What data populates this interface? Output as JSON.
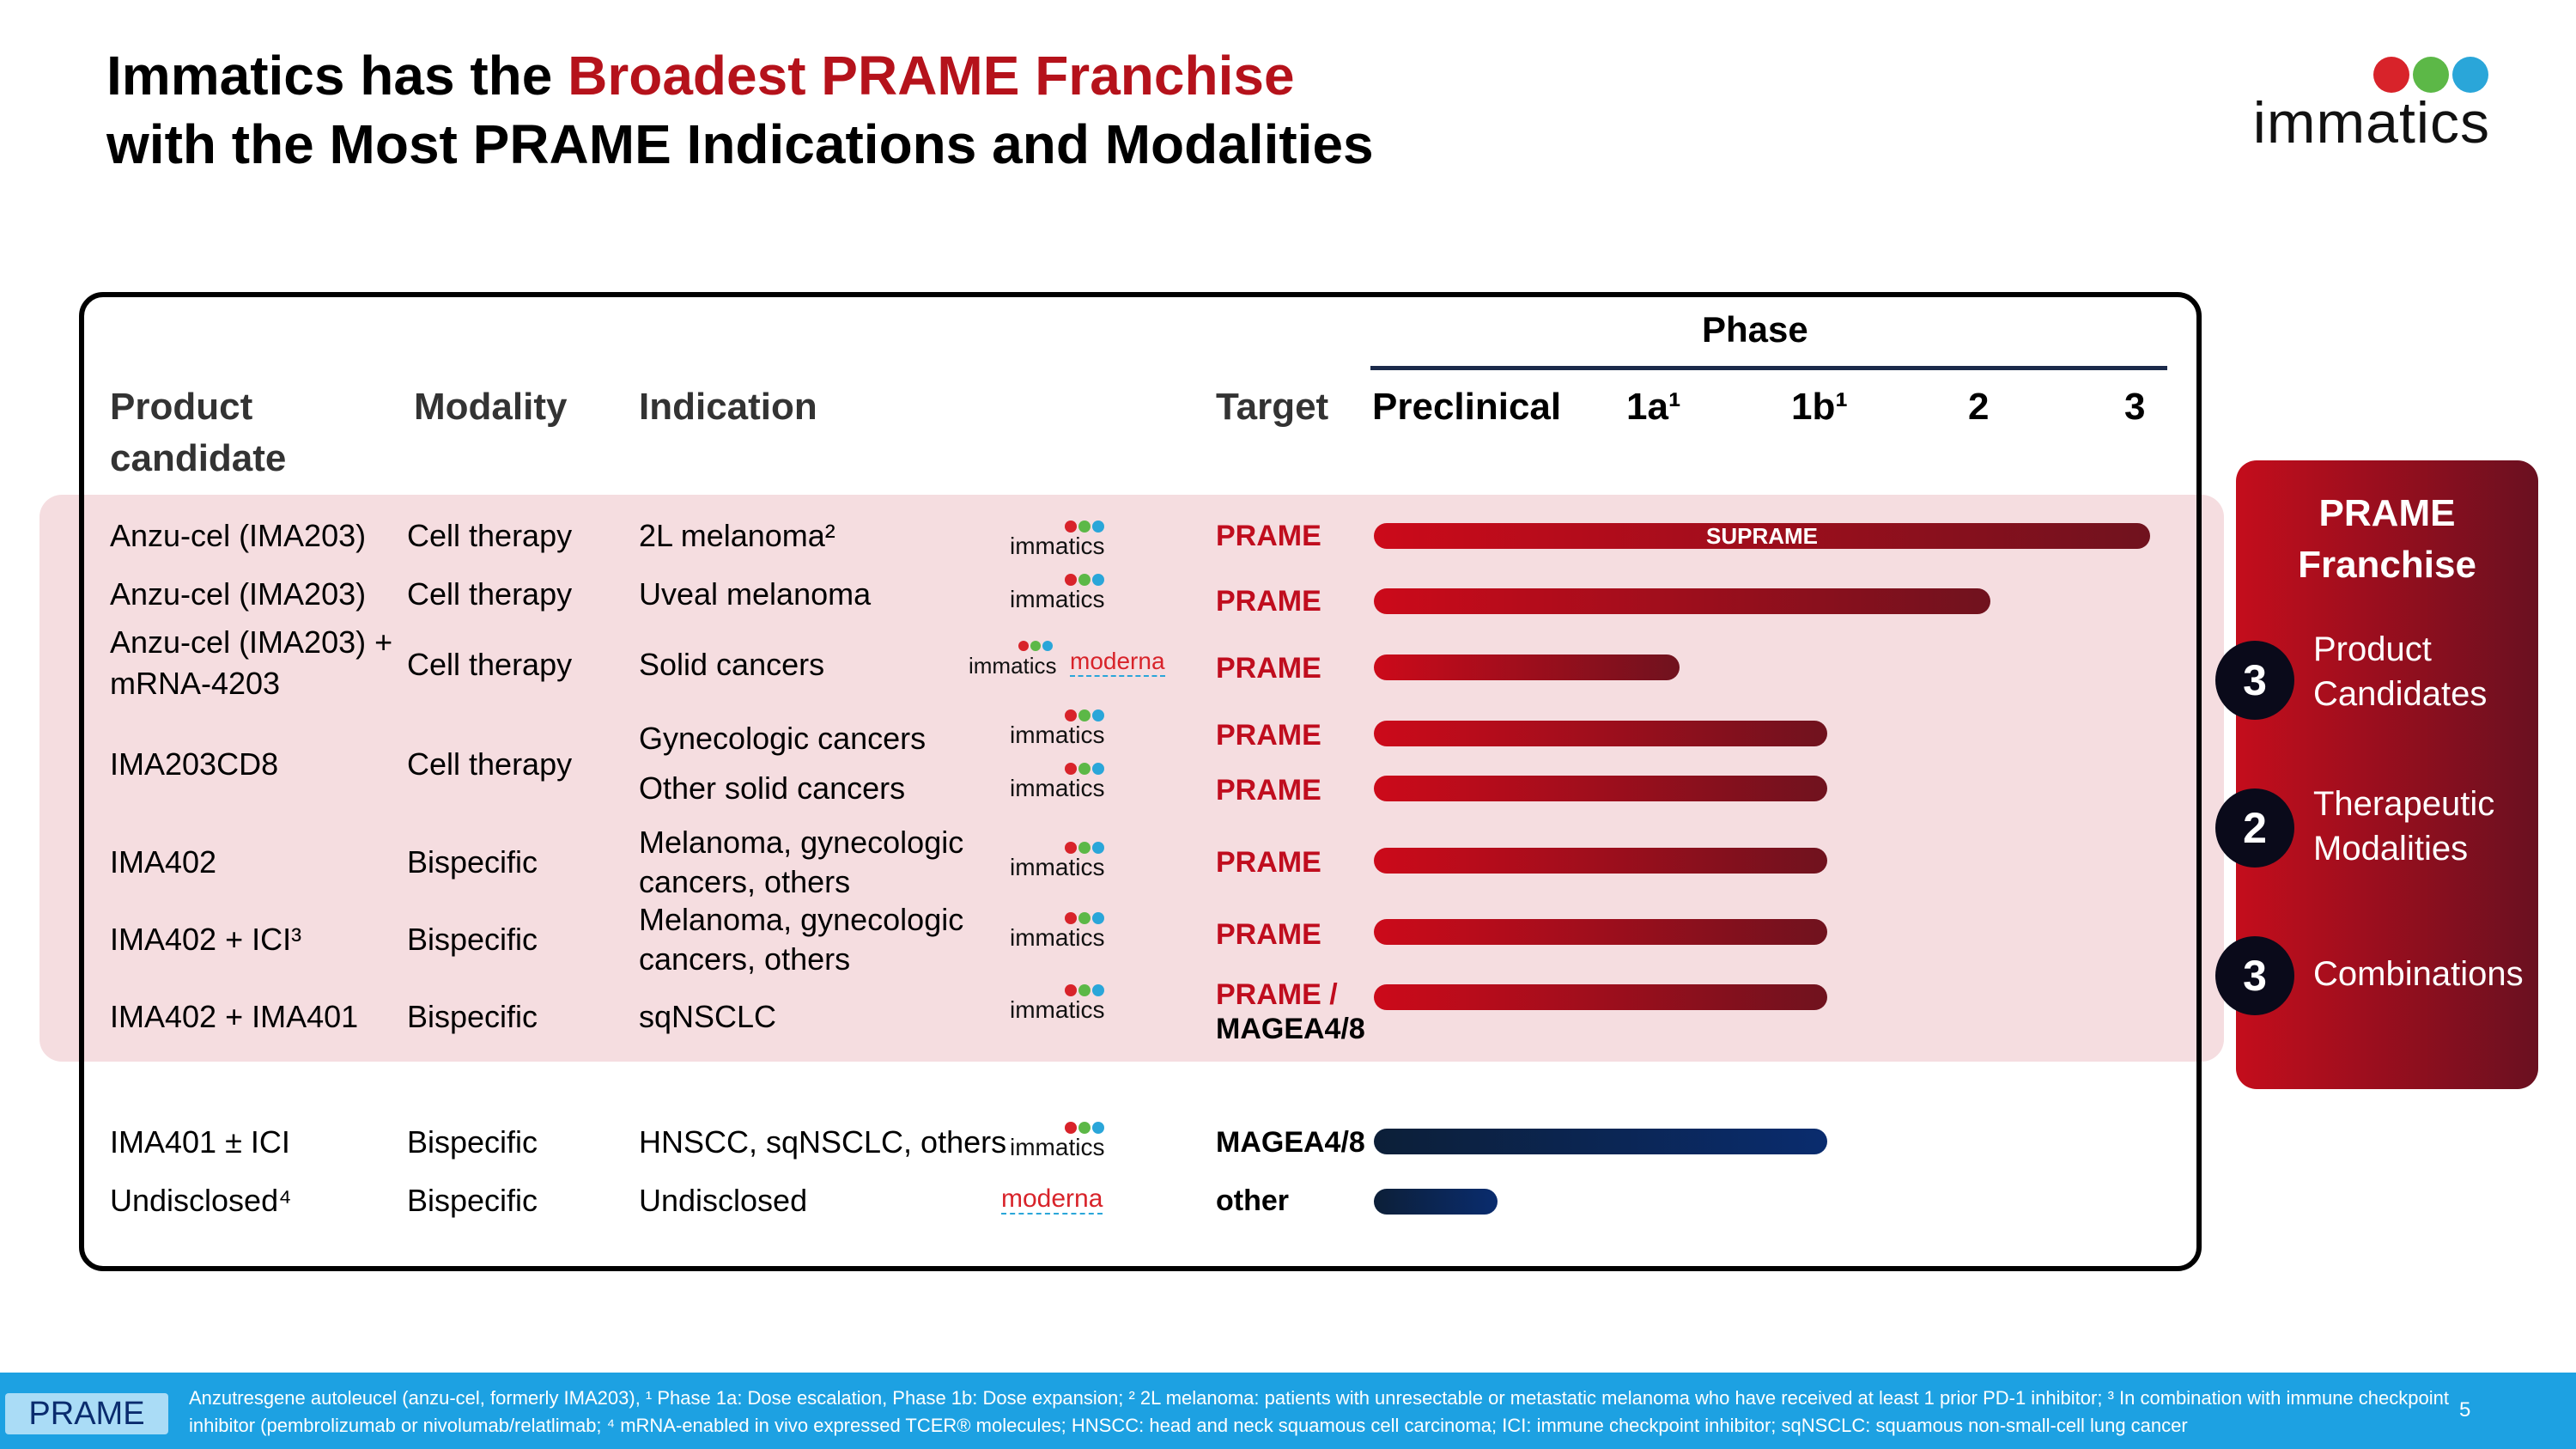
{
  "title": {
    "line1_pre": "Immatics has the ",
    "line1_hl": "Broadest PRAME Franchise",
    "line2": "with the Most PRAME Indications and Modalities"
  },
  "logo": {
    "word": "immatics",
    "colors": [
      "#d8232a",
      "#5cb847",
      "#2aa6d9"
    ]
  },
  "table": {
    "headers": {
      "product": "Product candidate",
      "modality": "Modality",
      "indication": "Indication",
      "target": "Target",
      "phase": "Phase",
      "preclinical": "Preclinical",
      "p1a": "1a¹",
      "p1b": "1b¹",
      "p2": "2",
      "p3": "3"
    },
    "rows": [
      {
        "product": "Anzu-cel (IMA203)",
        "modality": "Cell therapy",
        "indication": "2L melanoma²",
        "partner": "immatics",
        "target": "PRAME",
        "phase_end": 3.0,
        "bar_label": "SUPRAME"
      },
      {
        "product": "Anzu-cel (IMA203)",
        "modality": "Cell therapy",
        "indication": "Uveal melanoma",
        "partner": "immatics",
        "target": "PRAME",
        "phase_end": 2.25
      },
      {
        "product": "Anzu-cel (IMA203) + mRNA-4203",
        "modality": "Cell therapy",
        "indication": "Solid cancers",
        "partner": "immatics moderna",
        "target": "PRAME",
        "phase_end": 0.9
      },
      {
        "product": "IMA203CD8",
        "modality": "Cell therapy",
        "indication": "Gynecologic cancers",
        "partner": "immatics",
        "target": "PRAME",
        "phase_end": 1.8
      },
      {
        "indication": "Other solid cancers",
        "partner": "immatics",
        "target": "PRAME",
        "phase_end": 1.8
      },
      {
        "product": "IMA402",
        "modality": "Bispecific",
        "indication": "Melanoma, gynecologic cancers, others",
        "partner": "immatics",
        "target": "PRAME",
        "phase_end": 1.8
      },
      {
        "product": "IMA402 + ICI³",
        "modality": "Bispecific",
        "indication": "Melanoma, gynecologic cancers, others",
        "partner": "immatics",
        "target": "PRAME",
        "phase_end": 1.8
      },
      {
        "product": "IMA402 + IMA401",
        "modality": "Bispecific",
        "indication": "sqNSCLC",
        "partner": "immatics",
        "target": "PRAME / MAGEA4/8",
        "phase_end": 1.8
      },
      {
        "product": "IMA401 ± ICI",
        "modality": "Bispecific",
        "indication": "HNSCC, sqNSCLC, others",
        "partner": "immatics",
        "target": "MAGEA4/8",
        "phase_end": 1.8
      },
      {
        "product": "Undisclosed⁴",
        "modality": "Bispecific",
        "indication": "Undisclosed",
        "partner": "moderna",
        "target": "other",
        "phase_end": 0.3
      }
    ]
  },
  "franchise": {
    "title": "PRAME Franchise",
    "items": [
      {
        "num": "3",
        "label": "Product Candidates"
      },
      {
        "num": "2",
        "label": "Therapeutic Modalities"
      },
      {
        "num": "3",
        "label": "Combinations"
      }
    ]
  },
  "footer": {
    "tag": "PRAME",
    "note": "Anzutresgene autoleucel (anzu-cel, formerly IMA203), ¹ Phase 1a: Dose escalation, Phase 1b: Dose expansion; ² 2L melanoma: patients with unresectable or metastatic melanoma who have received at least 1 prior PD-1 inhibitor; ³ In combination with immune checkpoint inhibitor (pembrolizumab or nivolumab/relatlimab; ⁴ mRNA-enabled in vivo expressed TCER® molecules; HNSCC: head and neck squamous cell carcinoma; ICI: immune checkpoint inhibitor; sqNSCLC: squamous non-small-cell lung cancer",
    "page": "5"
  }
}
